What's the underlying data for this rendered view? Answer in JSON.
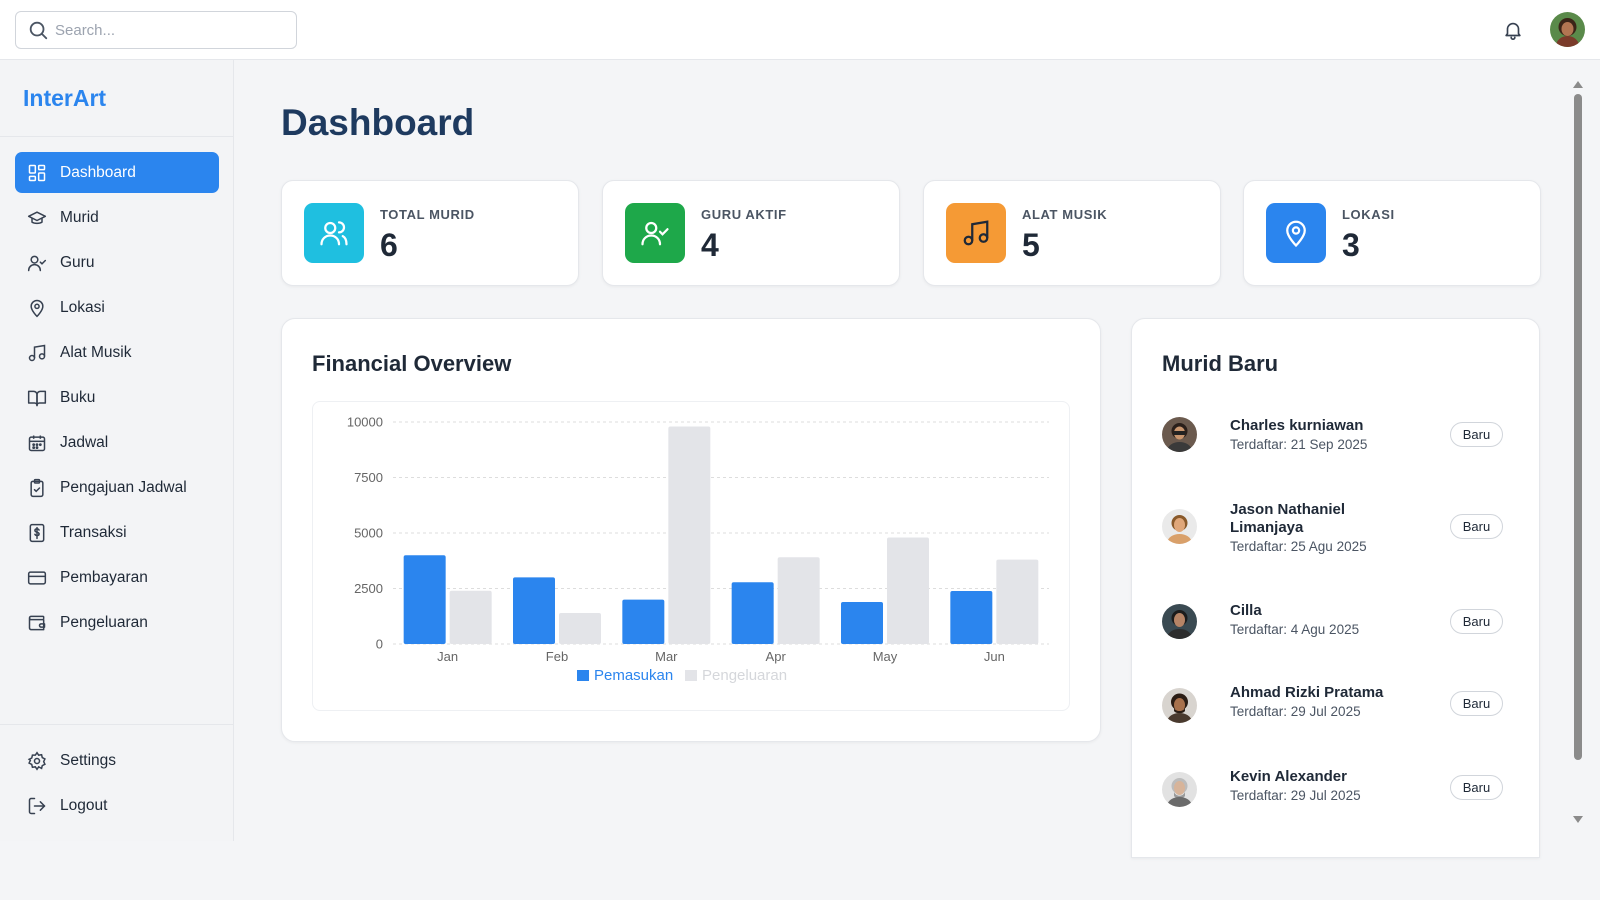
{
  "header": {
    "search_placeholder": "Search...",
    "icons": {
      "search": "search-icon",
      "notifications": "bell-icon",
      "avatar": "user-avatar"
    }
  },
  "sidebar": {
    "brand": "InterArt",
    "items": [
      {
        "label": "Dashboard",
        "icon": "dashboard-grid-icon",
        "active": true
      },
      {
        "label": "Murid",
        "icon": "graduation-cap-icon"
      },
      {
        "label": "Guru",
        "icon": "user-check-icon"
      },
      {
        "label": "Lokasi",
        "icon": "map-pin-icon"
      },
      {
        "label": "Alat Musik",
        "icon": "music-note-icon"
      },
      {
        "label": "Buku",
        "icon": "book-open-icon"
      },
      {
        "label": "Jadwal",
        "icon": "calendar-icon"
      },
      {
        "label": "Pengajuan Jadwal",
        "icon": "clipboard-check-icon"
      },
      {
        "label": "Transaksi",
        "icon": "receipt-dollar-icon"
      },
      {
        "label": "Pembayaran",
        "icon": "credit-card-icon"
      },
      {
        "label": "Pengeluaran",
        "icon": "wallet-icon"
      }
    ],
    "bottom": [
      {
        "label": "Settings",
        "icon": "gear-icon"
      },
      {
        "label": "Logout",
        "icon": "logout-icon"
      }
    ]
  },
  "main": {
    "title": "Dashboard",
    "stats": [
      {
        "label": "TOTAL MURID",
        "value": "6",
        "color": "#1fbfe0",
        "icon": "users-icon"
      },
      {
        "label": "GURU AKTIF",
        "value": "4",
        "color": "#1ea84a",
        "icon": "user-check-icon"
      },
      {
        "label": "ALAT MUSIK",
        "value": "5",
        "color": "#f59a35",
        "icon": "music-note-icon"
      },
      {
        "label": "LOKASI",
        "value": "3",
        "color": "#2b85ee",
        "icon": "map-pin-icon"
      }
    ],
    "financial": {
      "title": "Financial Overview"
    },
    "new_students": {
      "title": "Murid Baru",
      "items": [
        {
          "name": "Charles kurniawan",
          "date": "Terdaftar: 21 Sep 2025",
          "badge": "Baru"
        },
        {
          "name": "Jason Nathaniel Limanjaya",
          "date": "Terdaftar: 25 Agu 2025",
          "badge": "Baru"
        },
        {
          "name": "Cilla",
          "date": "Terdaftar: 4 Agu 2025",
          "badge": "Baru"
        },
        {
          "name": "Ahmad Rizki Pratama",
          "date": "Terdaftar: 29 Jul 2025",
          "badge": "Baru"
        },
        {
          "name": "Kevin Alexander",
          "date": "Terdaftar: 29 Jul 2025",
          "badge": "Baru"
        }
      ]
    }
  },
  "colors": {
    "accent": "#2b85ee",
    "income": "#2b85ee",
    "expense": "#e3e4e8"
  },
  "chart_data": {
    "type": "bar",
    "title": "Financial Overview",
    "categories": [
      "Jan",
      "Feb",
      "Mar",
      "Apr",
      "May",
      "Jun"
    ],
    "series": [
      {
        "name": "Pemasukan",
        "color": "#2b85ee",
        "values": [
          4000,
          3000,
          2000,
          2780,
          1890,
          2390
        ]
      },
      {
        "name": "Pengeluaran",
        "color": "#e3e4e8",
        "values": [
          2400,
          1398,
          9800,
          3908,
          4800,
          3800
        ]
      }
    ],
    "yticks": [
      "0",
      "2500",
      "5000",
      "7500",
      "10000"
    ],
    "ylim": [
      0,
      10000
    ],
    "grid": true,
    "legend": "bottom-center"
  }
}
